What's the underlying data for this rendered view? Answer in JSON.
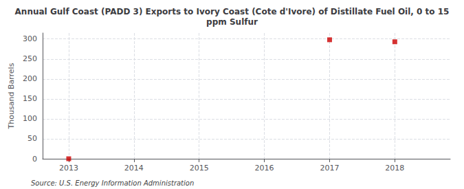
{
  "chart_data": {
    "type": "scatter",
    "title": "Annual Gulf Coast (PADD 3) Exports to Ivory Coast (Cote d'Ivore) of Distillate Fuel Oil, 0 to 15\nppm Sulfur",
    "y_label": "Thousand Barrels",
    "annotations": [
      "Source: U.S. Energy Information Administration"
    ],
    "x": [
      2013,
      2017,
      2018
    ],
    "values": [
      0,
      298,
      293
    ],
    "color": "#cc0000",
    "marker": "square",
    "xlim": [
      2012.6,
      2018.85
    ],
    "xticks": [
      2013,
      2014,
      2015,
      2016,
      2017,
      2018
    ],
    "ylim": [
      0,
      315
    ],
    "yticks": [
      0,
      50,
      100,
      150,
      200,
      250,
      300
    ],
    "grid": true
  }
}
